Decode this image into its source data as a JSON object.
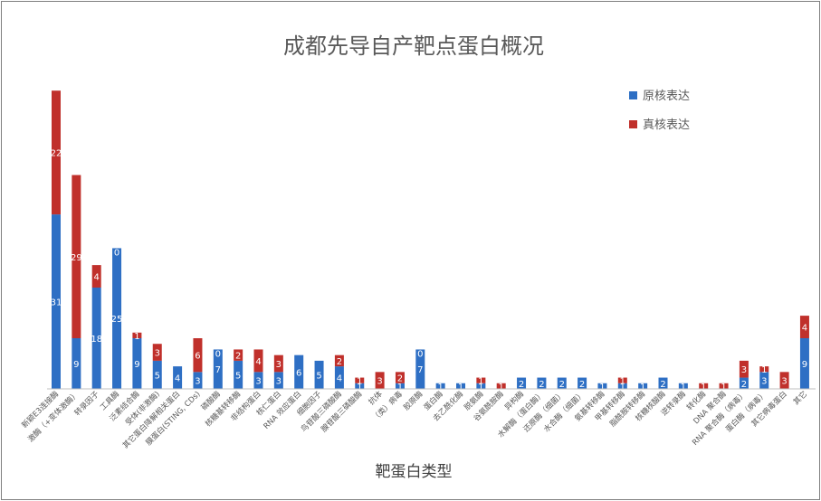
{
  "chart_data": {
    "type": "bar",
    "stacked": true,
    "title": "成都先导自产靶点蛋白概况",
    "xlabel": "靶蛋白类型",
    "ylabel": "",
    "ylim": [
      0,
      54
    ],
    "legend_position": "top-right",
    "grid": false,
    "categories": [
      "新颖E3连接酶",
      "激酶（+变体激酶）",
      "转录因子",
      "工具酶",
      "泛素结合酶",
      "受体(非激酶)",
      "其它蛋白降解相关蛋白",
      "膜蛋白(STING, CDs)",
      "磷酸酶",
      "核糖基转移酶",
      "非结构蛋白",
      "核仁蛋白",
      "RNA 效应蛋白",
      "细胞因子",
      "鸟苷酸三磷酸酶",
      "腺苷酸三磷酸酶",
      "抗体",
      "（类）病毒",
      "胶原酶",
      "蛋白酶",
      "去乙酰化酶",
      "脱氨酶",
      "谷氨酰胺酶",
      "异构酶",
      "水解酶（蛋白酶）",
      "还原酶（细菌）",
      "水合酶（细菌）",
      "氨基转移酶",
      "甲基转移酶",
      "脂酰胺转移酶",
      "核糖核酸酶",
      "逆转录酶",
      "转化酶",
      "DNA 聚合酶",
      "RNA 聚合酶（病毒）",
      "蛋白酶（病毒）",
      "其它病毒蛋白",
      "其它"
    ],
    "series": [
      {
        "name": "原核表达",
        "color": "#2E6FC4",
        "values": [
          31,
          9,
          18,
          25,
          9,
          5,
          4,
          3,
          7,
          5,
          3,
          3,
          6,
          5,
          4,
          1,
          0,
          1,
          7,
          1,
          1,
          1,
          0,
          2,
          2,
          2,
          2,
          1,
          1,
          1,
          2,
          1,
          0,
          0,
          2,
          3,
          0,
          9
        ]
      },
      {
        "name": "真核表达",
        "color": "#C0302B",
        "values": [
          22,
          29,
          4,
          0,
          1,
          3,
          0,
          6,
          0,
          2,
          4,
          3,
          0,
          0,
          2,
          1,
          3,
          2,
          0,
          0,
          0,
          1,
          1,
          0,
          0,
          0,
          0,
          0,
          1,
          0,
          0,
          0,
          1,
          1,
          3,
          1,
          3,
          4
        ]
      }
    ],
    "label_zero": [
      false,
      false,
      false,
      true,
      false,
      false,
      false,
      false,
      true,
      false,
      false,
      false,
      false,
      false,
      false,
      false,
      true,
      false,
      true,
      false,
      false,
      false,
      true,
      false,
      false,
      false,
      false,
      false,
      false,
      false,
      false,
      false,
      true,
      true,
      false,
      false,
      true,
      false
    ]
  }
}
